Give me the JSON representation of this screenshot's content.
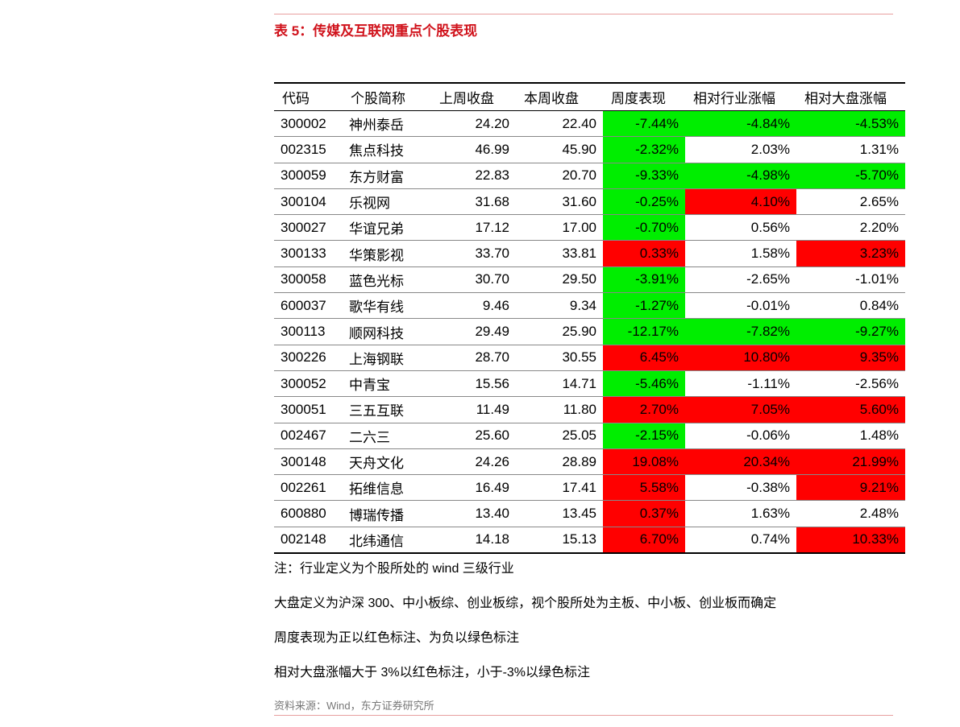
{
  "title": "表 5：传媒及互联网重点个股表现",
  "table": {
    "header": [
      "代码",
      "个股简称",
      "上周收盘",
      "本周收盘",
      "周度表现",
      "相对行业涨幅",
      "相对大盘涨幅"
    ],
    "rows": [
      [
        "300002",
        "神州泰岳",
        "24.20",
        "22.40",
        "-7.44%",
        "-4.84%",
        "-4.53%"
      ],
      [
        "002315",
        "焦点科技",
        "46.99",
        "45.90",
        "-2.32%",
        "2.03%",
        "1.31%"
      ],
      [
        "300059",
        "东方财富",
        "22.83",
        "20.70",
        "-9.33%",
        "-4.98%",
        "-5.70%"
      ],
      [
        "300104",
        "乐视网",
        "31.68",
        "31.60",
        "-0.25%",
        "4.10%",
        "2.65%"
      ],
      [
        "300027",
        "华谊兄弟",
        "17.12",
        "17.00",
        "-0.70%",
        "0.56%",
        "2.20%"
      ],
      [
        "300133",
        "华策影视",
        "33.70",
        "33.81",
        "0.33%",
        "1.58%",
        "3.23%"
      ],
      [
        "300058",
        "蓝色光标",
        "30.70",
        "29.50",
        "-3.91%",
        "-2.65%",
        "-1.01%"
      ],
      [
        "600037",
        "歌华有线",
        "9.46",
        "9.34",
        "-1.27%",
        "-0.01%",
        "0.84%"
      ],
      [
        "300113",
        "顺网科技",
        "29.49",
        "25.90",
        "-12.17%",
        "-7.82%",
        "-9.27%"
      ],
      [
        "300226",
        "上海钢联",
        "28.70",
        "30.55",
        "6.45%",
        "10.80%",
        "9.35%"
      ],
      [
        "300052",
        "中青宝",
        "15.56",
        "14.71",
        "-5.46%",
        "-1.11%",
        "-2.56%"
      ],
      [
        "300051",
        "三五互联",
        "11.49",
        "11.80",
        "2.70%",
        "7.05%",
        "5.60%"
      ],
      [
        "002467",
        "二六三",
        "25.60",
        "25.05",
        "-2.15%",
        "-0.06%",
        "1.48%"
      ],
      [
        "300148",
        "天舟文化",
        "24.26",
        "28.89",
        "19.08%",
        "20.34%",
        "21.99%"
      ],
      [
        "002261",
        "拓维信息",
        "16.49",
        "17.41",
        "5.58%",
        "-0.38%",
        "9.21%"
      ],
      [
        "600880",
        "博瑞传播",
        "13.40",
        "13.45",
        "0.37%",
        "1.63%",
        "2.48%"
      ],
      [
        "002148",
        "北纬通信",
        "14.18",
        "15.13",
        "6.70%",
        "0.74%",
        "10.33%"
      ]
    ]
  },
  "notes": [
    "注：行业定义为个股所处的 wind 三级行业",
    "大盘定义为沪深 300、中小板综、创业板综，视个股所处为主板、中小板、创业板而确定",
    "周度表现为正以红色标注、为负以绿色标注",
    "相对大盘涨幅大于 3%以红色标注，小于-3%以绿色标注"
  ],
  "source": "资料来源：Wind，东方证券研究所"
}
